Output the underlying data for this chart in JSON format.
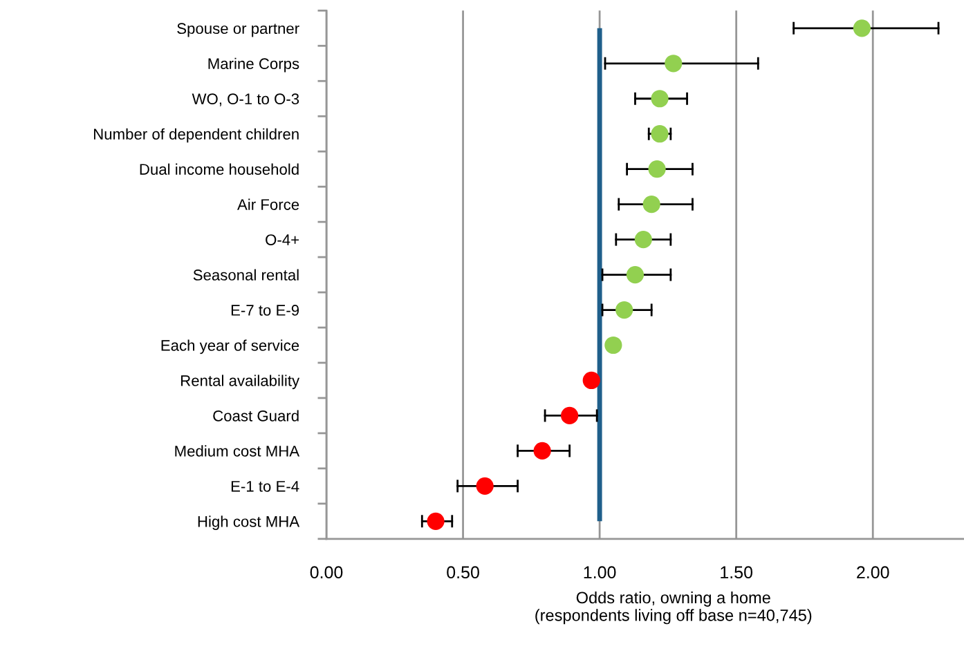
{
  "chart_data": {
    "type": "scatter",
    "orientation": "horizontal",
    "categories": [
      "Spouse or partner",
      "Marine Corps",
      "WO, O-1 to O-3",
      "Number of dependent children",
      "Dual income household",
      "Air Force",
      "O-4+",
      "Seasonal rental",
      "E-7 to E-9",
      "Each year of service",
      "Rental availability",
      "Coast Guard",
      "Medium cost MHA",
      "E-1 to E-4",
      "High cost MHA"
    ],
    "values": [
      1.96,
      1.27,
      1.22,
      1.22,
      1.21,
      1.19,
      1.16,
      1.13,
      1.09,
      1.05,
      0.97,
      0.89,
      0.79,
      0.58,
      0.4
    ],
    "errors": [
      [
        1.71,
        2.24
      ],
      [
        1.02,
        1.58
      ],
      [
        1.13,
        1.32
      ],
      [
        1.18,
        1.26
      ],
      [
        1.1,
        1.34
      ],
      [
        1.07,
        1.34
      ],
      [
        1.06,
        1.26
      ],
      [
        1.01,
        1.26
      ],
      [
        1.01,
        1.19
      ],
      null,
      null,
      [
        0.8,
        0.99
      ],
      [
        0.7,
        0.89
      ],
      [
        0.48,
        0.7
      ],
      [
        0.35,
        0.46
      ]
    ],
    "colors": [
      "#92d050",
      "#92d050",
      "#92d050",
      "#92d050",
      "#92d050",
      "#92d050",
      "#92d050",
      "#92d050",
      "#92d050",
      "#92d050",
      "#ff0000",
      "#ff0000",
      "#ff0000",
      "#ff0000",
      "#ff0000"
    ],
    "marker": "circle",
    "xlim": [
      0,
      2.33
    ],
    "xticks": [
      {
        "value": 0,
        "label": "0.00"
      },
      {
        "value": 0.5,
        "label": "0.50"
      },
      {
        "value": 1,
        "label": "1.00"
      },
      {
        "value": 1.5,
        "label": "1.50"
      },
      {
        "value": 2,
        "label": "2.00"
      }
    ],
    "xlabel": "Odds ratio, owning a home\n(respondents living off base n=40,745)",
    "grid": "x",
    "ref_lines": [
      {
        "axis": "x",
        "value": 1,
        "label": null,
        "color": "#1f5f8b"
      }
    ]
  }
}
